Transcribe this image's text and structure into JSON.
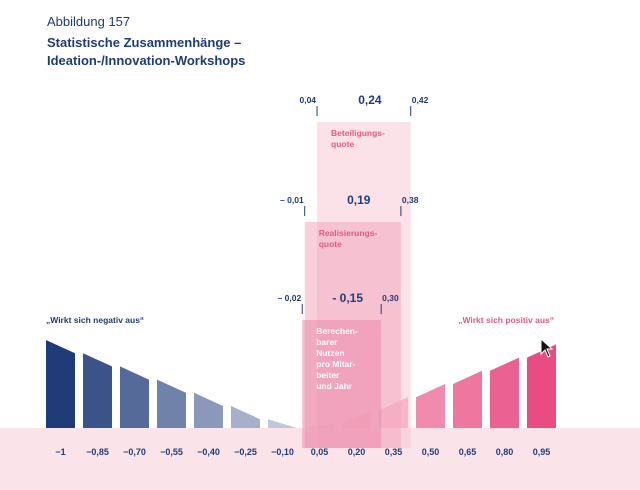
{
  "figure_label": "Abbildung 157",
  "title_line1": "Statistische Zusammenhänge –",
  "title_line2": "Ideation-/Innovation-Workshops",
  "chart_data": {
    "type": "bar",
    "categories": [
      "−1",
      "−0,85",
      "−0,70",
      "−0,55",
      "−0,40",
      "−0,25",
      "−0,10",
      "0,05",
      "0,20",
      "0,35",
      "0,50",
      "0,65",
      "0,80",
      "0,95"
    ],
    "values": [
      -1,
      -0.85,
      -0.7,
      -0.55,
      -0.4,
      -0.25,
      -0.1,
      0.05,
      0.2,
      0.35,
      0.5,
      0.65,
      0.8,
      0.95
    ],
    "left_annotation": "„Wirkt sich negativ aus“",
    "right_annotation": "„Wirkt sich positiv aus“",
    "intervals": [
      {
        "label_lines": [
          "Beteiligungs-",
          "quote"
        ],
        "low": 0.04,
        "estimate": 0.24,
        "high": 0.42,
        "low_label": "0,04",
        "estimate_label": "0,24",
        "high_label": "0,42",
        "color": "#f7c9d6"
      },
      {
        "label_lines": [
          "Realisierungs-",
          "quote"
        ],
        "low": -0.01,
        "estimate": 0.19,
        "high": 0.38,
        "low_label": "– 0,01",
        "estimate_label": "0,19",
        "high_label": "0,38",
        "color": "#f2a9c0"
      },
      {
        "label_lines": [
          "Berechen-",
          "barer",
          "Nutzen",
          "pro Mitar-",
          "beiter",
          "und Jahr"
        ],
        "low": -0.02,
        "estimate": -0.15,
        "high": 0.3,
        "low_label": "– 0,02",
        "estimate_label": "- 0,15",
        "high_label": "0,30",
        "color": "#ec8bab"
      }
    ],
    "colors": {
      "negative": "#1f3c78",
      "positive": "#e8457e",
      "label_pink": "#e05a8a",
      "baseline_band": "#fbe3ea"
    }
  }
}
